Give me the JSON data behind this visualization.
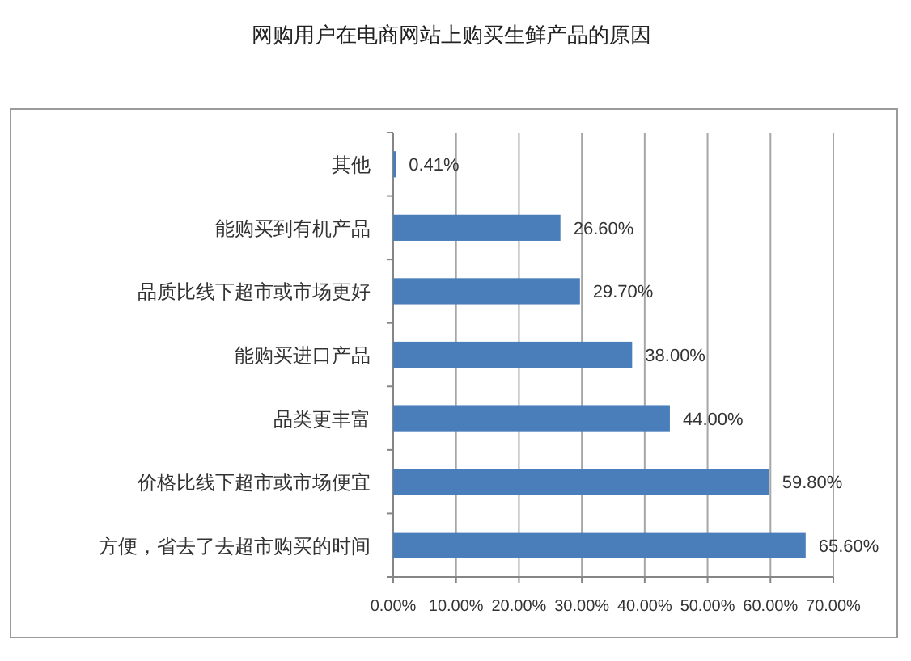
{
  "chart_data": {
    "type": "bar",
    "orientation": "horizontal",
    "title": "网购用户在电商网站上购买生鲜产品的原因",
    "categories": [
      "其他",
      "能购买到有机产品",
      "品质比线下超市或市场更好",
      "能购买进口产品",
      "品类更丰富",
      "价格比线下超市或市场便宜",
      "方便，省去了去超市购买的时间"
    ],
    "values": [
      0.41,
      26.6,
      29.7,
      38.0,
      44.0,
      59.8,
      65.6
    ],
    "value_labels": [
      "0.41%",
      "26.60%",
      "29.70%",
      "38.00%",
      "44.00%",
      "59.80%",
      "65.60%"
    ],
    "color": "#4a7ebb",
    "xlim": [
      0,
      70
    ],
    "xticks": [
      {
        "value": 0,
        "label": "0.00%"
      },
      {
        "value": 10,
        "label": "10.00%"
      },
      {
        "value": 20,
        "label": "20.00%"
      },
      {
        "value": 30,
        "label": "30.00%"
      },
      {
        "value": 40,
        "label": "40.00%"
      },
      {
        "value": 50,
        "label": "50.00%"
      },
      {
        "value": 60,
        "label": "60.00%"
      },
      {
        "value": 70,
        "label": "70.00%"
      }
    ],
    "grid": "x"
  }
}
